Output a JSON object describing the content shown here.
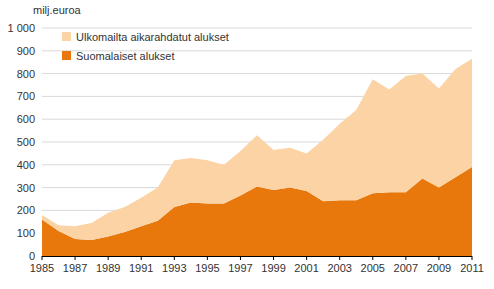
{
  "chart_data": {
    "type": "area",
    "stacked": true,
    "y_label": "milj.euroa",
    "x": [
      1985,
      1986,
      1987,
      1988,
      1989,
      1990,
      1991,
      1992,
      1993,
      1994,
      1995,
      1996,
      1997,
      1998,
      1999,
      2000,
      2001,
      2002,
      2003,
      2004,
      2005,
      2006,
      2007,
      2008,
      2009,
      2010,
      2011
    ],
    "series": [
      {
        "name": "Suomalaiset alukset",
        "color": "#e8780c",
        "values": [
          160,
          110,
          75,
          70,
          85,
          105,
          130,
          155,
          215,
          235,
          230,
          230,
          265,
          305,
          290,
          300,
          285,
          240,
          245,
          245,
          275,
          280,
          280,
          340,
          300,
          345,
          390
        ]
      },
      {
        "name": "Ulkomailta aikarahdatut alukset",
        "color": "#fbd3a4",
        "values": [
          20,
          25,
          55,
          75,
          105,
          110,
          125,
          145,
          205,
          195,
          190,
          170,
          195,
          225,
          175,
          175,
          165,
          270,
          335,
          395,
          500,
          450,
          510,
          460,
          435,
          475,
          475
        ]
      }
    ],
    "xlim": [
      1985,
      2011
    ],
    "xticks": [
      1985,
      1987,
      1989,
      1991,
      1993,
      1995,
      1997,
      1999,
      2001,
      2003,
      2005,
      2007,
      2009,
      2011
    ],
    "ylim": [
      0,
      1000
    ],
    "yticks": [
      0,
      100,
      200,
      300,
      400,
      500,
      600,
      700,
      800,
      900,
      {
        "value": 1000,
        "label": "1 000"
      }
    ],
    "grid": true,
    "legend": "top-left"
  }
}
